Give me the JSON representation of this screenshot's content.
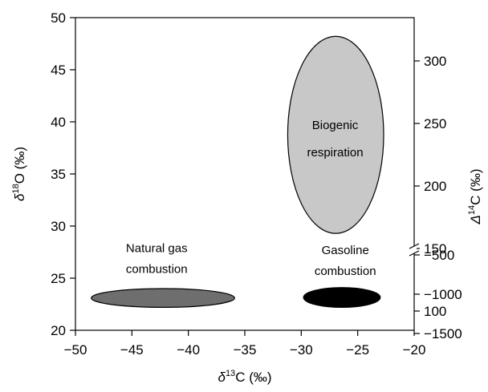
{
  "chart_data": {
    "type": "scatter",
    "xlabel": {
      "prefix": "δ",
      "sup": "13",
      "suffix": "C (‰)"
    },
    "ylabel_left": {
      "prefix": "δ",
      "sup": "18",
      "suffix": "O (‰)"
    },
    "ylabel_right": {
      "prefix": "Δ",
      "sup": "14",
      "suffix": "C (‰)"
    },
    "xlim": [
      -50,
      -20
    ],
    "ylim": [
      20,
      50
    ],
    "x_ticks": [
      -50,
      -45,
      -40,
      -35,
      -30,
      -25,
      -20
    ],
    "y_ticks_left": [
      20,
      25,
      30,
      35,
      40,
      45,
      50
    ],
    "y_ticks_right_upper": [
      100,
      150,
      200,
      250,
      300
    ],
    "y_ticks_right_lower": [
      -1500,
      -1000,
      -500
    ],
    "right_axis_break": true,
    "grid": false,
    "legend": "none",
    "regions": [
      {
        "name": "Natural gas combustion",
        "label_lines": [
          "Natural gas",
          "combustion"
        ],
        "x_range": [
          -48.6,
          -35.9
        ],
        "y_range": [
          22.2,
          24.0
        ],
        "fill": "#6e6e6e"
      },
      {
        "name": "Gasoline combustion",
        "label_lines": [
          "Gasoline",
          "combustion"
        ],
        "x_range": [
          -29.8,
          -23.0
        ],
        "y_range": [
          22.2,
          24.1
        ],
        "fill": "#000000"
      },
      {
        "name": "Biogenic respiration",
        "label_lines": [
          "Biogenic",
          "respiration"
        ],
        "x_range": [
          -31.2,
          -22.7
        ],
        "y_range": [
          29.3,
          48.2
        ],
        "fill": "#c8c8c8"
      }
    ]
  }
}
